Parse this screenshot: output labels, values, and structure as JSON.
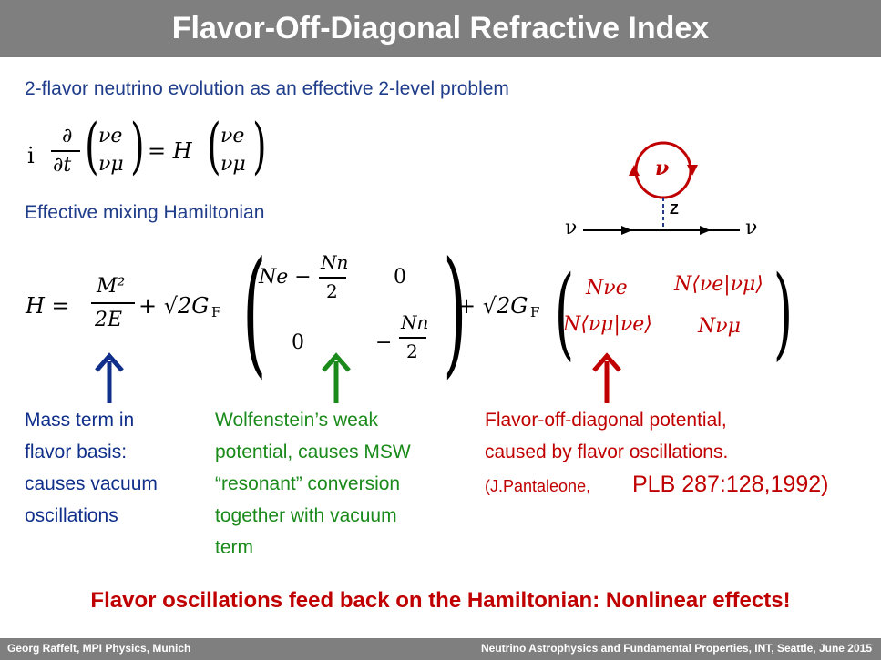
{
  "title": "Flavor-Off-Diagonal Refractive Index",
  "intro": "2-flavor neutrino evolution as an effective 2-level problem",
  "eq1": {
    "i": "i",
    "partial": "∂",
    "partial_t": "∂t",
    "nu_e": "νe",
    "nu_mu": "νμ",
    "equals_H": "= H"
  },
  "hamiltonian_label": "Effective mixing Hamiltonian",
  "diagram": {
    "loop_nu": "ν",
    "z_label": "Z",
    "left_nu": "ν",
    "right_nu": "ν"
  },
  "eq2": {
    "H_eq": "H =",
    "M2": "M²",
    "twoE": "2E",
    "plus_sqrt2GF_1": "+ √2G",
    "F1": "F",
    "Ne_minus": "Ne −",
    "Nn": "Nn",
    "two": "2",
    "zero": "0",
    "minus": "−",
    "plus_sqrt2GF_2": "+ √2G",
    "F2": "F",
    "N_nue": "Nνe",
    "N_nue_numu": "N⟨νe|νμ⟩",
    "N_numu_nue": "N⟨νμ|νe⟩",
    "N_numu": "Nνμ"
  },
  "notes": {
    "mass": [
      "Mass term in",
      "flavor basis:",
      "causes vacuum",
      "oscillations"
    ],
    "wolfenstein": [
      "Wolfenstein’s weak",
      "potential, causes MSW",
      "“resonant” conversion",
      "together with vacuum",
      "term"
    ],
    "offdiag_line1": "Flavor-off-diagonal potential,",
    "offdiag_line2": "caused by flavor oscillations.",
    "ref_prefix": "(J.Pantaleone,",
    "ref_main": "PLB 287:128,1992)"
  },
  "conclusion": "Flavor oscillations feed back on the Hamiltonian: Nonlinear effects!",
  "footer": {
    "left": "Georg Raffelt, MPI Physics, Munich",
    "right": "Neutrino Astrophysics and Fundamental Properties, INT, Seattle, June 2015"
  },
  "colors": {
    "blue_text": "#1f3d8a",
    "green_text": "#1a8a1a",
    "red_text": "#c00000",
    "title_bar": "#7f7f7f"
  }
}
